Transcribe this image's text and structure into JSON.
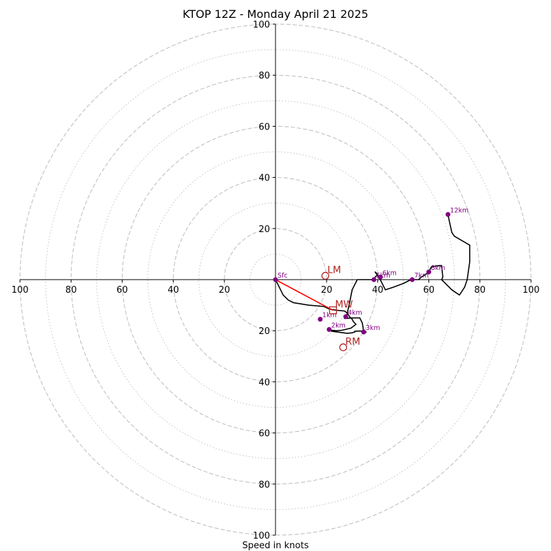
{
  "chart_data": {
    "type": "hodograph",
    "title": "KTOP 12Z - Monday April 21 2025",
    "xlabel": "Speed in knots",
    "unit": "knots",
    "range": [
      -100,
      100
    ],
    "ring_major": [
      20,
      40,
      60,
      80,
      100
    ],
    "ring_minor": [
      10,
      30,
      50,
      70,
      90
    ],
    "tick_values": [
      20,
      40,
      60,
      80,
      100
    ],
    "colors": {
      "trace": "#000000",
      "markers": "#800080",
      "motion": "#b22222",
      "shear": "#ff0000",
      "grid": "#c0c0c0"
    },
    "trace": [
      [
        0,
        0
      ],
      [
        1,
        -2
      ],
      [
        2,
        -4
      ],
      [
        3,
        -6
      ],
      [
        5,
        -8
      ],
      [
        7,
        -9
      ],
      [
        13,
        -10
      ],
      [
        19,
        -10.5
      ],
      [
        21,
        -11.5
      ],
      [
        24,
        -12
      ],
      [
        27,
        -12.3
      ],
      [
        28,
        -13
      ],
      [
        29,
        -14.5
      ],
      [
        30,
        -15.5
      ],
      [
        30.5,
        -16.5
      ],
      [
        31.5,
        -17.5
      ],
      [
        29.5,
        -19
      ],
      [
        26,
        -19.8
      ],
      [
        24,
        -20
      ],
      [
        22,
        -19.8
      ],
      [
        21,
        -19.8
      ],
      [
        22,
        -20.2
      ],
      [
        25,
        -20.6
      ],
      [
        28,
        -21
      ],
      [
        30,
        -20.8
      ],
      [
        31,
        -20.5
      ],
      [
        31,
        -20.2
      ],
      [
        33,
        -20.1
      ],
      [
        34.5,
        -20.2
      ],
      [
        35.5,
        -20.5
      ],
      [
        34.4,
        -20.6
      ],
      [
        34.3,
        -19
      ],
      [
        34,
        -17
      ],
      [
        33,
        -15
      ],
      [
        30,
        -15
      ],
      [
        27,
        -15.2
      ],
      [
        28,
        -13.5
      ],
      [
        29,
        -9
      ],
      [
        30,
        -4
      ],
      [
        31,
        -2
      ],
      [
        32,
        0
      ],
      [
        35,
        0
      ],
      [
        38.5,
        0
      ],
      [
        39,
        1
      ],
      [
        40,
        2
      ],
      [
        39,
        3
      ],
      [
        40,
        1.5
      ],
      [
        41,
        0
      ],
      [
        42,
        -2
      ],
      [
        43,
        -4
      ],
      [
        46,
        -3
      ],
      [
        50,
        -1.5
      ],
      [
        53,
        0
      ],
      [
        55,
        0
      ],
      [
        56,
        0
      ],
      [
        57,
        1
      ],
      [
        58,
        1.5
      ],
      [
        60,
        3
      ],
      [
        61,
        5
      ],
      [
        64,
        5.5
      ],
      [
        65,
        5.5
      ],
      [
        65.5,
        1
      ],
      [
        65,
        0
      ],
      [
        66,
        -1
      ],
      [
        67,
        -2
      ],
      [
        69,
        -4
      ],
      [
        72,
        -6
      ],
      [
        74,
        -3
      ],
      [
        75,
        0
      ],
      [
        76,
        7
      ],
      [
        76,
        13.5
      ],
      [
        70,
        17
      ],
      [
        69,
        18.5
      ],
      [
        68,
        23
      ],
      [
        67.5,
        25.5
      ]
    ],
    "markers": [
      {
        "label": "Sfc",
        "u": 0,
        "v": 0
      },
      {
        "label": "1km",
        "u": 17.5,
        "v": -15.5
      },
      {
        "label": "2km",
        "u": 21,
        "v": -19.5
      },
      {
        "label": "3km",
        "u": 34.5,
        "v": -20.5
      },
      {
        "label": "4km",
        "u": 27.5,
        "v": -14.5
      },
      {
        "label": "5km",
        "u": 38.5,
        "v": 0
      },
      {
        "label": "6km",
        "u": 41,
        "v": 1
      },
      {
        "label": "7km",
        "u": 53.5,
        "v": 0
      },
      {
        "label": "8km",
        "u": 60,
        "v": 3
      },
      {
        "label": "12km",
        "u": 67.5,
        "v": 25.5
      }
    ],
    "storm_motion": [
      {
        "label": "LM",
        "u": 19.5,
        "v": 1.5,
        "shape": "circle"
      },
      {
        "label": "RM",
        "u": 26.5,
        "v": -26.5,
        "shape": "circle"
      },
      {
        "label": "MW",
        "u": 22.5,
        "v": -12,
        "shape": "square"
      }
    ],
    "shear_vector": {
      "from": [
        0,
        0
      ],
      "to": [
        22.5,
        -12
      ]
    }
  }
}
